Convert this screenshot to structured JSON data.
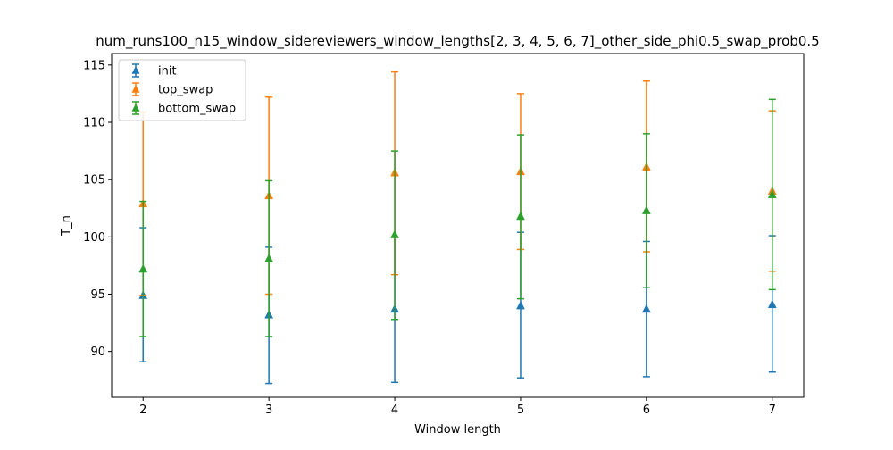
{
  "chart_data": {
    "type": "errorbar",
    "title": "num_runs100_n15_window_sidereviewers_window_lengths[2, 3, 4, 5, 6, 7]_other_side_phi0.5_swap_prob0.5",
    "xlabel": "Window length",
    "ylabel": "T_n",
    "x": [
      2,
      3,
      4,
      5,
      6,
      7
    ],
    "xlim": [
      1.75,
      7.25
    ],
    "ylim": [
      86.0,
      116.0
    ],
    "xticks": [
      2,
      3,
      4,
      5,
      6,
      7
    ],
    "yticks": [
      90,
      95,
      100,
      105,
      110,
      115
    ],
    "marker": "triangle-up",
    "legend_position": "top-left",
    "series": [
      {
        "name": "init",
        "color": "#1f77b4",
        "values": [
          94.9,
          93.2,
          93.7,
          94.0,
          93.7,
          94.1
        ],
        "lower": [
          89.1,
          87.2,
          87.3,
          87.7,
          87.8,
          88.2
        ],
        "upper": [
          100.8,
          99.1,
          100.0,
          100.4,
          99.6,
          100.1
        ]
      },
      {
        "name": "top_swap",
        "color": "#ff7f0e",
        "values": [
          102.9,
          103.6,
          105.6,
          105.7,
          106.1,
          104.0
        ],
        "lower": [
          94.9,
          95.0,
          96.7,
          98.9,
          98.7,
          97.0
        ],
        "upper": [
          110.9,
          112.2,
          114.4,
          112.5,
          113.6,
          111.0
        ]
      },
      {
        "name": "bottom_swap",
        "color": "#2ca02c",
        "values": [
          97.2,
          98.1,
          100.2,
          101.8,
          102.3,
          103.7
        ],
        "lower": [
          91.3,
          91.3,
          92.8,
          94.6,
          95.6,
          95.4
        ],
        "upper": [
          103.1,
          104.9,
          107.5,
          108.9,
          109.0,
          112.0
        ]
      }
    ]
  }
}
